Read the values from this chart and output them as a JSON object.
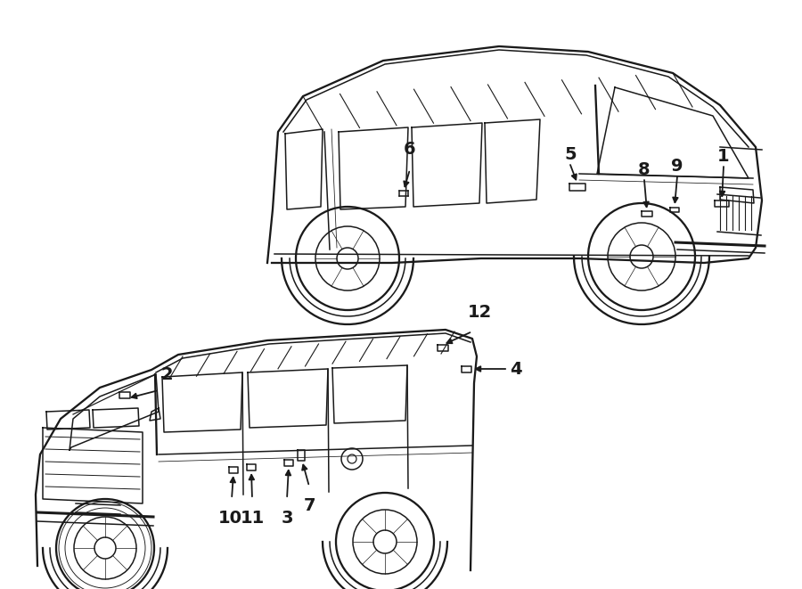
{
  "bg_color": "#ffffff",
  "line_color": "#1a1a1a",
  "label_fontsize": 14,
  "figsize": [
    9.0,
    6.61
  ],
  "dpi": 100
}
